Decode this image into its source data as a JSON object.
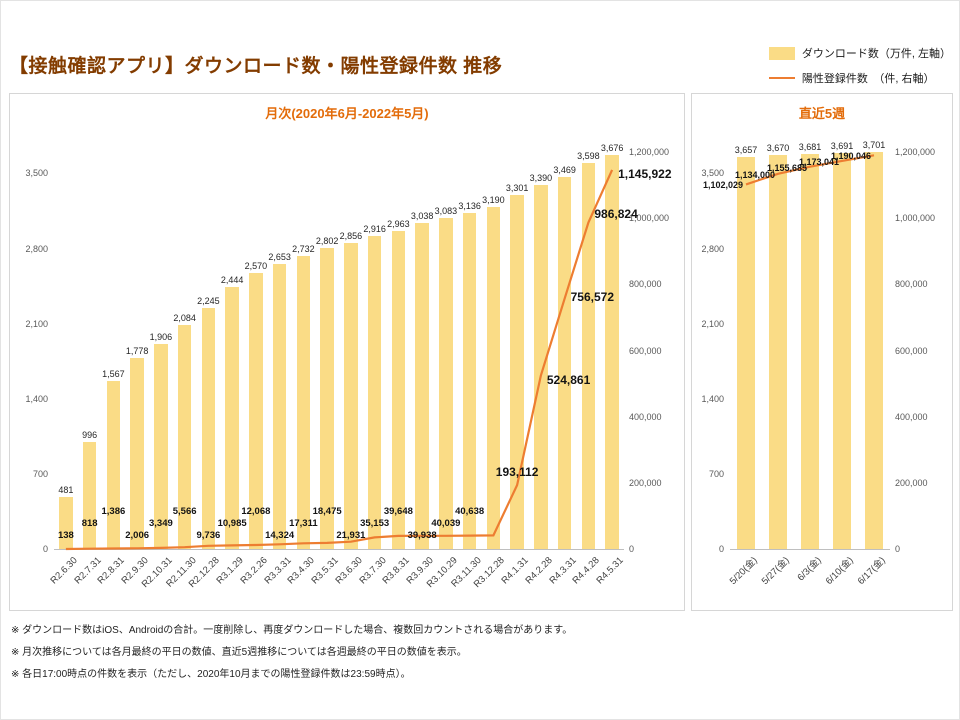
{
  "page": {
    "title": "【接触確認アプリ】ダウンロード数・陽性登録件数 推移"
  },
  "legend": {
    "items": [
      {
        "label": "ダウンロード数（万件, 左軸）",
        "swatch": "bar-swatch"
      },
      {
        "label": "陽性登録件数　（件, 右軸）",
        "swatch": "line-swatch"
      }
    ]
  },
  "colors": {
    "bar": "#FADC86",
    "line": "#ED7D31",
    "title": "#833C00",
    "chart_title": "#E36C0A"
  },
  "footnotes": [
    "※ ダウンロード数はiOS、Androidの合計。一度削除し、再度ダウンロードした場合、複数回カウントされる場合があります。",
    "※ 月次推移については各月最終の平日の数値、直近5週推移については各週最終の平日の数値を表示。",
    "※ 各日17:00時点の件数を表示（ただし、2020年10月までの陽性登録件数は23:59時点）。"
  ],
  "chart_data": [
    {
      "type": "bar",
      "subtype": "bar+line-combo",
      "title": "月次(2020年6月-2022年5月)",
      "categories": [
        "R2.6.30",
        "R2.7.31",
        "R2.8.31",
        "R2.9.30",
        "R2.10.31",
        "R2.11.30",
        "R2.12.28",
        "R3.1.29",
        "R3.2.26",
        "R3.3.31",
        "R3.4.30",
        "R3.5.31",
        "R3.6.30",
        "R3.7.30",
        "R3.8.31",
        "R3.9.30",
        "R3.10.29",
        "R3.11.30",
        "R3.12.28",
        "R4.1.31",
        "R4.2.28",
        "R4.3.31",
        "R4.4.28",
        "R4.5.31"
      ],
      "series": [
        {
          "name": "ダウンロード数（万件, 左軸）",
          "type": "bar",
          "axis": "left",
          "values": [
            481,
            996,
            1567,
            1778,
            1906,
            2084,
            2245,
            2444,
            2570,
            2653,
            2732,
            2802,
            2856,
            2916,
            2963,
            3038,
            3083,
            3136,
            3190,
            3301,
            3390,
            3469,
            3598,
            3676
          ]
        },
        {
          "name": "陽性登録件数（件, 右軸）",
          "type": "line",
          "axis": "right",
          "values": [
            138,
            818,
            1386,
            2006,
            3349,
            5566,
            9736,
            10985,
            12068,
            14324,
            17311,
            18475,
            21931,
            35153,
            39648,
            39938,
            40039,
            40638,
            41000,
            193112,
            524861,
            756572,
            986824,
            1145922
          ],
          "hidden_label_indices": [
            18
          ],
          "estimated_value_indices": [
            18
          ]
        }
      ],
      "left_axis": {
        "label": "万件",
        "ticks": [
          0,
          700,
          1400,
          2100,
          2800,
          3500
        ],
        "scale_max": 3700
      },
      "right_axis": {
        "label": "件",
        "ticks": [
          0,
          200000,
          400000,
          600000,
          800000,
          1000000,
          1200000
        ],
        "scale_max": 1200000
      },
      "grid": false,
      "legend_position": "top-right"
    },
    {
      "type": "bar",
      "subtype": "bar+line-combo",
      "title": "直近5週",
      "categories": [
        "5/20(金)",
        "5/27(金)",
        "6/3(金)",
        "6/10(金)",
        "6/17(金)"
      ],
      "series": [
        {
          "name": "ダウンロード数（万件, 左軸）",
          "type": "bar",
          "axis": "left",
          "values": [
            3657,
            3670,
            3681,
            3691,
            3701
          ]
        },
        {
          "name": "陽性登録件数（件, 右軸）",
          "type": "line",
          "axis": "right",
          "values": [
            1102029,
            1134000,
            1155685,
            1173041,
            1190046
          ]
        }
      ],
      "left_axis": {
        "label": "万件",
        "ticks": [
          0,
          700,
          1400,
          2100,
          2800,
          3500
        ],
        "scale_max": 3700
      },
      "right_axis": {
        "label": "件",
        "ticks": [
          0,
          200000,
          400000,
          600000,
          800000,
          1000000,
          1200000
        ],
        "scale_max": 1200000
      },
      "grid": false,
      "legend_position": "none"
    }
  ]
}
